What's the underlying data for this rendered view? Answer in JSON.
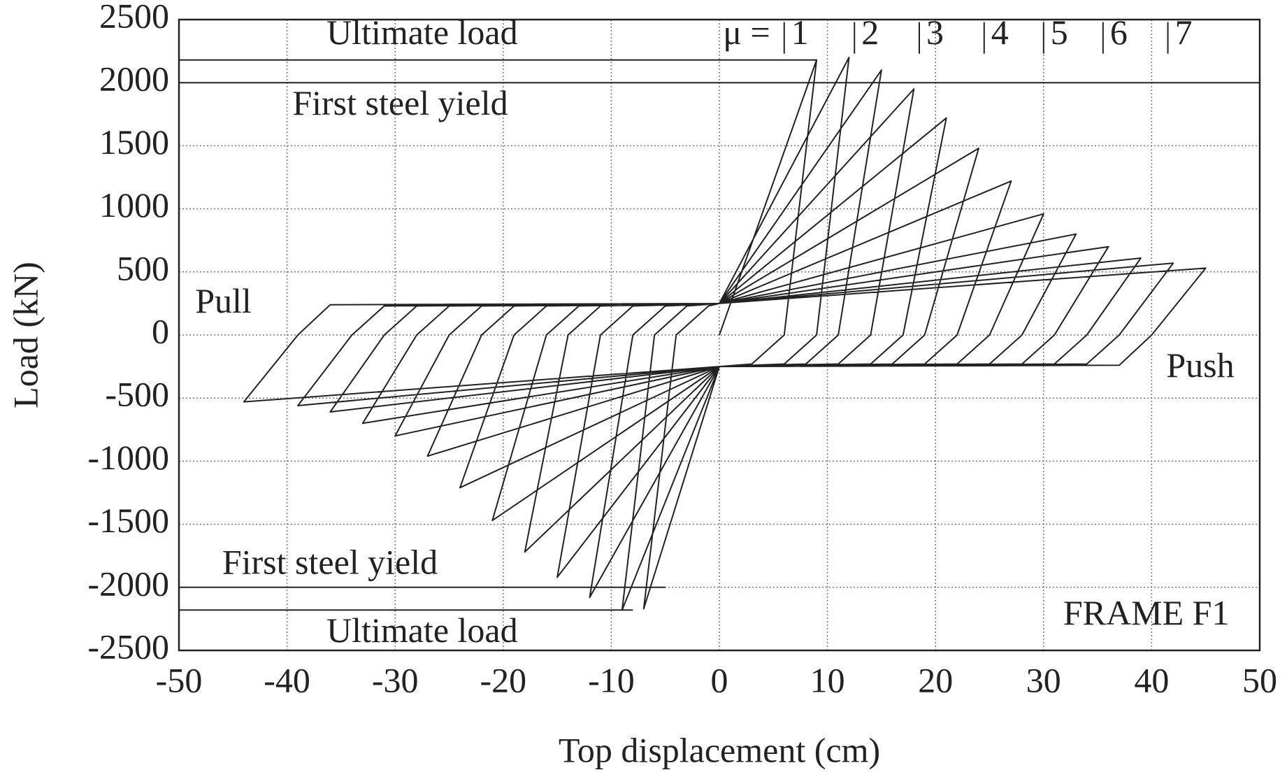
{
  "chart_data": {
    "type": "line",
    "xlabel": "Top displacement (cm)",
    "ylabel": "Load (kN)",
    "xlim": [
      -50,
      50
    ],
    "xticks": [
      -50,
      -40,
      -30,
      -20,
      -10,
      0,
      10,
      20,
      30,
      40,
      50
    ],
    "ylim": [
      -2500,
      2500
    ],
    "yticks": [
      -2500,
      -2000,
      -1500,
      -1000,
      -500,
      0,
      500,
      1000,
      1500,
      2000,
      2500
    ],
    "grid": true,
    "x": [
      0,
      9,
      6,
      3,
      0,
      -7,
      -4,
      -1,
      0,
      12,
      9,
      6,
      0,
      -9,
      -6,
      -3,
      0,
      15,
      11,
      8,
      0,
      -12,
      -8,
      -5,
      0,
      18,
      14,
      11,
      0,
      -15,
      -11,
      -8,
      0,
      21,
      17,
      14,
      0,
      -18,
      -14,
      -11,
      0,
      24,
      19,
      16,
      0,
      -21,
      -16,
      -13,
      0,
      27,
      22,
      19,
      0,
      -24,
      -19,
      -16,
      0,
      30,
      25,
      22,
      0,
      -27,
      -22,
      -19,
      0,
      33,
      28,
      25,
      0,
      -30,
      -25,
      -22,
      0,
      36,
      31,
      28,
      0,
      -33,
      -28,
      -25,
      0,
      39,
      34,
      31,
      0,
      -36,
      -31,
      -28,
      0,
      42,
      37,
      34,
      0,
      -39,
      -34,
      -31,
      0,
      45,
      40,
      37,
      0,
      -44,
      -39,
      -36,
      0
    ],
    "series": [
      {
        "color": "#222222",
        "values": [
          0,
          2180,
          0,
          -230,
          -250,
          -2170,
          0,
          230,
          250,
          2200,
          0,
          -230,
          -250,
          -2180,
          0,
          230,
          250,
          2100,
          0,
          -230,
          -250,
          -2080,
          0,
          230,
          250,
          1950,
          0,
          -230,
          -250,
          -1920,
          0,
          230,
          250,
          1720,
          0,
          -230,
          -250,
          -1720,
          0,
          230,
          250,
          1480,
          0,
          -230,
          -250,
          -1470,
          0,
          230,
          250,
          1220,
          0,
          -230,
          -250,
          -1210,
          0,
          230,
          250,
          960,
          0,
          -230,
          -250,
          -960,
          0,
          230,
          250,
          800,
          0,
          -230,
          -250,
          -800,
          0,
          230,
          250,
          700,
          0,
          -230,
          -250,
          -700,
          0,
          230,
          250,
          610,
          0,
          -230,
          -250,
          -610,
          0,
          230,
          250,
          570,
          0,
          -230,
          -250,
          -560,
          0,
          230,
          250,
          530,
          0,
          -240,
          -250,
          -530,
          0,
          240,
          250
        ]
      }
    ],
    "reference_lines": [
      {
        "label": "Ultimate load",
        "y": 2180,
        "xrange": [
          -50,
          9
        ]
      },
      {
        "label": "First steel yield",
        "y": 2000,
        "xrange": [
          -50,
          50
        ]
      },
      {
        "label": "First steel yield",
        "y": -2000,
        "xrange": [
          -50,
          -5
        ]
      },
      {
        "label": "Ultimate load",
        "y": -2180,
        "xrange": [
          -50,
          -8
        ]
      }
    ],
    "ductility_label": "μ =",
    "ductility": [
      {
        "label": "1",
        "x": 6
      },
      {
        "label": "2",
        "x": 12.5
      },
      {
        "label": "3",
        "x": 18.5
      },
      {
        "label": "4",
        "x": 24.5
      },
      {
        "label": "5",
        "x": 30
      },
      {
        "label": "6",
        "x": 35.5
      },
      {
        "label": "7",
        "x": 41.5
      }
    ],
    "annotations": [
      "Pull",
      "Push",
      "FRAME F1"
    ]
  }
}
